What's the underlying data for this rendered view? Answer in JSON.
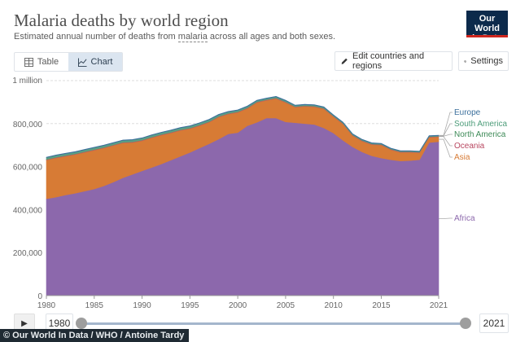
{
  "header": {
    "title": "Malaria deaths by world region",
    "subtitle_pre": "Estimated annual number of deaths from ",
    "subtitle_term": "malaria",
    "subtitle_post": " across all ages and both sexes.",
    "logo_line1": "Our World",
    "logo_line2": "in Data",
    "logo_color": "#0c2a4b",
    "logo_accent": "#ce261e"
  },
  "tabs": [
    {
      "label": "Table",
      "icon": "table-icon"
    },
    {
      "label": "Chart",
      "icon": "chart-icon",
      "active": true
    }
  ],
  "toolbar": {
    "edit_label": "Edit countries and regions",
    "edit_icon": "pencil-icon",
    "settings_label": "Settings",
    "settings_icon": "gear-icon"
  },
  "timeline": {
    "play_icon": "play-icon",
    "start_year": "1980",
    "end_year": "2021"
  },
  "credit": "© Our World In Data / WHO / Antoine Tardy",
  "chart_data": {
    "type": "area",
    "stacked": true,
    "title": "Malaria deaths by world region",
    "x": [
      1980,
      1981,
      1982,
      1983,
      1984,
      1985,
      1986,
      1987,
      1988,
      1989,
      1990,
      1991,
      1992,
      1993,
      1994,
      1995,
      1996,
      1997,
      1998,
      1999,
      2000,
      2001,
      2002,
      2003,
      2004,
      2005,
      2006,
      2007,
      2008,
      2009,
      2010,
      2011,
      2012,
      2013,
      2014,
      2015,
      2016,
      2017,
      2018,
      2019,
      2020,
      2021
    ],
    "xticks": [
      1980,
      1985,
      1990,
      1995,
      2000,
      2005,
      2010,
      2015,
      2021
    ],
    "ylim": [
      0,
      1000000
    ],
    "yticks": [
      {
        "value": 0,
        "label": "0"
      },
      {
        "value": 200000,
        "label": "200,000"
      },
      {
        "value": 400000,
        "label": "400,000"
      },
      {
        "value": 600000,
        "label": "600,000"
      },
      {
        "value": 800000,
        "label": "800,000"
      },
      {
        "value": 1000000,
        "label": "1 million"
      }
    ],
    "series": [
      {
        "name": "Africa",
        "color": "#8c68ac",
        "values": [
          450000,
          458000,
          468000,
          476000,
          486000,
          496000,
          510000,
          528000,
          548000,
          564000,
          580000,
          596000,
          612000,
          630000,
          648000,
          666000,
          686000,
          706000,
          728000,
          752000,
          758000,
          790000,
          806000,
          826000,
          826000,
          808000,
          804000,
          800000,
          796000,
          780000,
          756000,
          722000,
          692000,
          668000,
          650000,
          640000,
          632000,
          626000,
          628000,
          632000,
          712000,
          716000
        ]
      },
      {
        "name": "Asia",
        "color": "#d77b35",
        "values": [
          180000,
          182000,
          180000,
          180000,
          180000,
          180000,
          176000,
          170000,
          162000,
          148000,
          140000,
          138000,
          134000,
          126000,
          120000,
          110000,
          104000,
          100000,
          102000,
          92000,
          94000,
          80000,
          92000,
          82000,
          90000,
          90000,
          72000,
          80000,
          82000,
          88000,
          76000,
          76000,
          52000,
          50000,
          52000,
          60000,
          46000,
          40000,
          38000,
          32000,
          24000,
          22000
        ]
      },
      {
        "name": "Oceania",
        "color": "#c25e5e",
        "values": [
          3000,
          3000,
          3000,
          3000,
          3000,
          3000,
          3000,
          3000,
          3000,
          3000,
          3000,
          3000,
          3000,
          3000,
          3000,
          3000,
          3000,
          3000,
          3000,
          3000,
          3000,
          3000,
          3000,
          3000,
          3000,
          3000,
          3000,
          3000,
          3000,
          3000,
          3000,
          3000,
          3000,
          3000,
          3000,
          3000,
          3000,
          3000,
          3000,
          3000,
          3000,
          3000
        ]
      },
      {
        "name": "North America",
        "color": "#4a9d6a",
        "values": [
          1000,
          1000,
          1000,
          1000,
          1000,
          1000,
          1000,
          1000,
          1000,
          1000,
          1000,
          1000,
          1000,
          1000,
          1000,
          1000,
          1000,
          1000,
          1000,
          1000,
          1000,
          1000,
          1000,
          1000,
          1000,
          1000,
          1000,
          1000,
          1000,
          1000,
          1000,
          1000,
          1000,
          1000,
          1000,
          1000,
          1000,
          1000,
          1000,
          1000,
          1000,
          1000
        ]
      },
      {
        "name": "South America",
        "color": "#5a9f86",
        "values": [
          8000,
          8000,
          8000,
          8000,
          8000,
          8000,
          8000,
          8000,
          8000,
          8000,
          8000,
          8000,
          8000,
          8000,
          8000,
          8000,
          8000,
          8000,
          7000,
          7000,
          6000,
          6000,
          5000,
          5000,
          5000,
          5000,
          4000,
          4000,
          4000,
          4000,
          3000,
          3000,
          3000,
          3000,
          3000,
          2000,
          2000,
          2000,
          2000,
          2000,
          2000,
          2000
        ]
      },
      {
        "name": "Europe",
        "color": "#3b6f9c",
        "values": [
          2000,
          2000,
          2000,
          2000,
          2000,
          2000,
          2000,
          2000,
          2000,
          2000,
          2000,
          2000,
          2000,
          2000,
          2000,
          2000,
          2000,
          2000,
          2000,
          2000,
          2000,
          2000,
          2000,
          2000,
          2000,
          2000,
          2000,
          2000,
          2000,
          2000,
          2000,
          2000,
          2000,
          2000,
          2000,
          2000,
          2000,
          2000,
          2000,
          2000,
          2000,
          2000
        ]
      }
    ],
    "legend": [
      {
        "name": "Europe",
        "color": "#3b6f9c"
      },
      {
        "name": "South America",
        "color": "#4c9c79"
      },
      {
        "name": "North America",
        "color": "#3e8b58"
      },
      {
        "name": "Oceania",
        "color": "#b8465f"
      },
      {
        "name": "Asia",
        "color": "#d77b35"
      },
      {
        "name": "Africa",
        "color": "#8c68ac"
      }
    ]
  }
}
